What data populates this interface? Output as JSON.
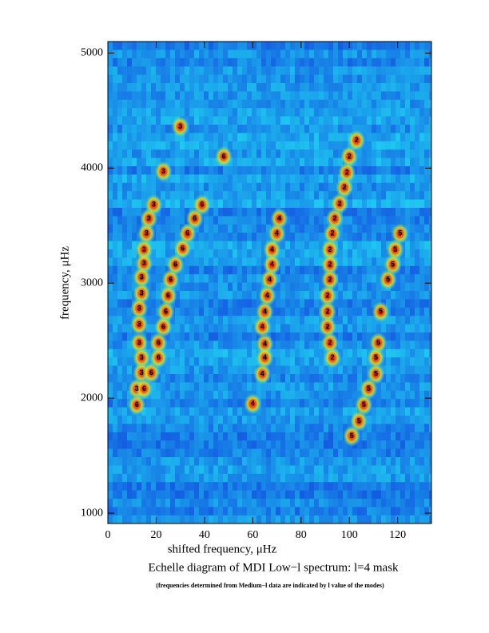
{
  "chart_data": {
    "type": "echelle",
    "title": "Echelle diagram of MDI Low−l spectrum: l=4 mask",
    "subtitle": "(frequencies determined from Medium−l data are indicated by  l value of the modes)",
    "x_label": "shifted frequency, μHz",
    "y_label": "frequency, μHz",
    "xlim": [
      0,
      134
    ],
    "xticks": [
      0,
      20,
      40,
      60,
      80,
      100,
      120
    ],
    "ylim": [
      910,
      5100
    ],
    "yticks": [
      1000,
      2000,
      3000,
      4000,
      5000
    ],
    "series": [
      {
        "name": "3",
        "x": [
          30,
          23,
          19,
          17,
          16,
          15,
          15,
          14,
          14,
          13,
          13,
          13,
          14,
          14,
          12
        ],
        "values": [
          4360,
          3970,
          3680,
          3560,
          3430,
          3290,
          3170,
          3050,
          2910,
          2780,
          2640,
          2480,
          2350,
          2220,
          2080
        ]
      },
      {
        "name": "6",
        "x": [
          48,
          39,
          36,
          33,
          31,
          28,
          26,
          25,
          24,
          23,
          21,
          21,
          18,
          15,
          12
        ],
        "values": [
          4100,
          3680,
          3560,
          3430,
          3300,
          3160,
          3030,
          2890,
          2750,
          2620,
          2480,
          2350,
          2220,
          2080,
          1940
        ]
      },
      {
        "name": "4",
        "x": [
          71,
          70,
          68,
          68,
          67,
          66,
          65,
          64,
          65,
          65,
          64,
          60
        ],
        "values": [
          3560,
          3430,
          3290,
          3160,
          3030,
          2890,
          2750,
          2620,
          2470,
          2350,
          2210,
          1950
        ]
      },
      {
        "name": "2",
        "x": [
          103,
          100,
          99,
          98,
          96,
          94,
          93,
          92,
          92,
          92,
          91,
          91,
          91,
          92,
          93
        ],
        "values": [
          4240,
          4100,
          3960,
          3830,
          3690,
          3560,
          3430,
          3290,
          3160,
          3030,
          2890,
          2750,
          2620,
          2480,
          2350
        ]
      },
      {
        "name": "5",
        "x": [
          121,
          119,
          118,
          116,
          113,
          112,
          111,
          111,
          108,
          106,
          104,
          101
        ],
        "values": [
          3430,
          3290,
          3160,
          3030,
          2750,
          2480,
          2350,
          2210,
          2080,
          1940,
          1800,
          1670
        ]
      }
    ]
  }
}
